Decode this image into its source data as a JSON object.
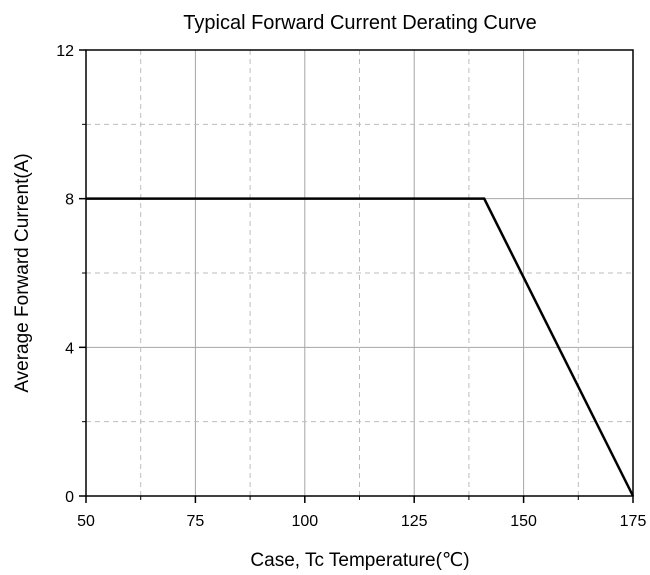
{
  "chart_data": {
    "type": "line",
    "title": "Typical Forward Current Derating Curve",
    "xlabel": "Case, Tc Temperature(℃)",
    "ylabel": "Average Forward Current(A)",
    "xlim": [
      50,
      175
    ],
    "ylim": [
      0,
      12
    ],
    "xticks": [
      50,
      75,
      100,
      125,
      150,
      175
    ],
    "yticks": [
      0,
      4,
      8,
      12
    ],
    "x_minor_gridlines": [
      62.5,
      87.5,
      112.5,
      137.5,
      162.5
    ],
    "y_minor_gridlines": [
      2,
      6,
      10
    ],
    "grid": true,
    "series": [
      {
        "x": [
          50,
          141,
          175
        ],
        "y": [
          8,
          8,
          0
        ],
        "color": "#000000"
      }
    ]
  }
}
